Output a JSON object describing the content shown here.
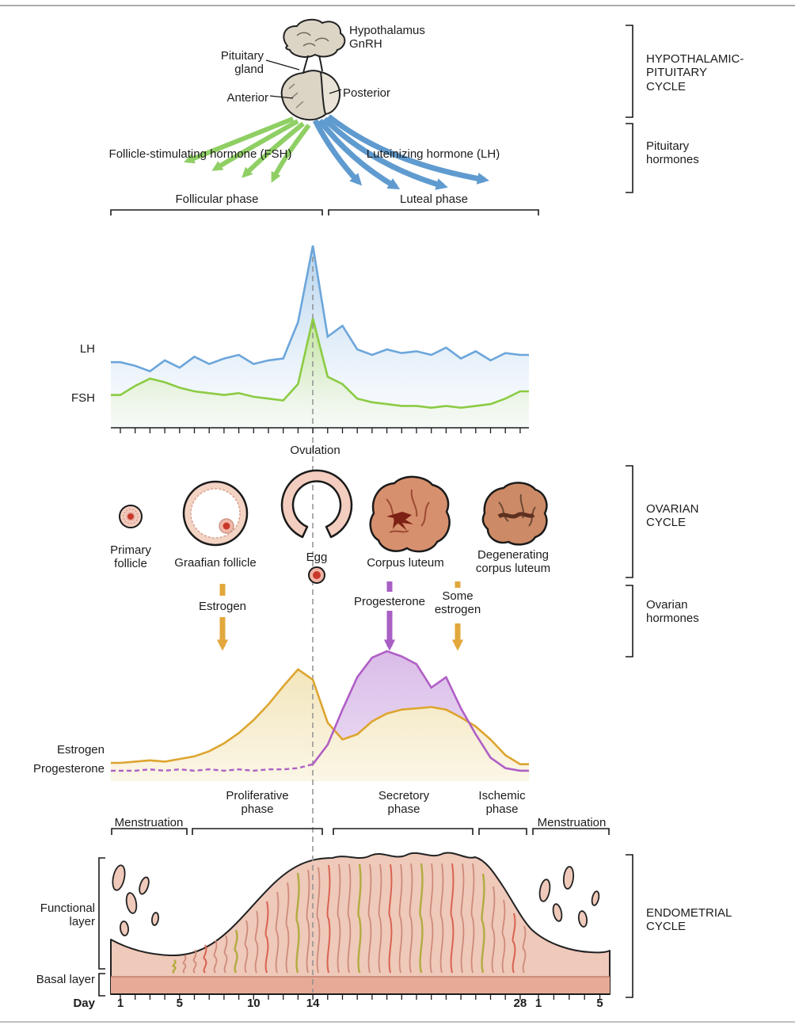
{
  "hypothalamic_pituitary": {
    "hypothalamus_gnrh": "Hypothalamus\nGnRH",
    "pituitary_gland": "Pituitary\ngland",
    "anterior": "Anterior",
    "posterior": "Posterior",
    "bracket_label": "HYPOTHALAMIC-\nPITUITARY\nCYCLE"
  },
  "pituitary_hormones": {
    "fsh_full": "Follicle-stimulating hormone (FSH)",
    "lh_full": "Luteinizing hormone (LH)",
    "bracket_label": "Pituitary\nhormones"
  },
  "cycle_phases": {
    "follicular": "Follicular phase",
    "luteal": "Luteal phase"
  },
  "gonadotropin_chart": {
    "lh": "LH",
    "fsh": "FSH"
  },
  "ovarian_cycle": {
    "ovulation": "Ovulation",
    "primary_follicle": "Primary\nfollicle",
    "graafian_follicle": "Graafian follicle",
    "egg": "Egg",
    "corpus_luteum": "Corpus luteum",
    "degenerating_corpus_luteum": "Degenerating\ncorpus luteum",
    "bracket_label": "OVARIAN\nCYCLE"
  },
  "ovarian_hormones": {
    "estrogen": "Estrogen",
    "progesterone": "Progesterone",
    "some_estrogen": "Some\nestrogen",
    "bracket_label": "Ovarian\nhormones"
  },
  "hormone_chart": {
    "estrogen": "Estrogen",
    "progesterone": "Progesterone"
  },
  "endometrial_phases": {
    "menstruation_left": "Menstruation",
    "proliferative": "Proliferative\nphase",
    "secretory": "Secretory\nphase",
    "ischemic": "Ischemic\nphase",
    "menstruation_right": "Menstruation"
  },
  "endometrial_cycle": {
    "functional_layer": "Functional\nlayer",
    "basal_layer": "Basal layer",
    "bracket_label": "ENDOMETRIAL\nCYCLE"
  },
  "day_axis": {
    "label": "Day",
    "ticks": [
      "1",
      "5",
      "10",
      "14",
      "28",
      "1",
      "5"
    ]
  },
  "colors": {
    "fsh_arrow": "#8fcf64",
    "lh_arrow": "#5f9bcf",
    "estrogen_arrow": "#e2a83c",
    "progesterone_arrow": "#a85fc4"
  },
  "chart_data": [
    {
      "type": "line",
      "x_label": "Day",
      "x_values": [
        1,
        2,
        3,
        4,
        5,
        6,
        7,
        8,
        9,
        10,
        11,
        12,
        13,
        14,
        15,
        16,
        17,
        18,
        19,
        20,
        21,
        22,
        23,
        24,
        25,
        26,
        27,
        28
      ],
      "x_range": [
        1,
        28
      ],
      "y_unit": "relative level (% of cycle maximum)",
      "surge_day": 14,
      "series": [
        {
          "name": "LH",
          "color": "#6ca6db",
          "values": [
            36,
            34,
            31,
            37,
            33,
            39,
            35,
            38,
            40,
            35,
            37,
            38,
            58,
            100,
            50,
            56,
            43,
            40,
            43,
            41,
            42,
            40,
            44,
            38,
            42,
            37,
            41,
            40
          ]
        },
        {
          "name": "FSH",
          "color": "#8ccb44",
          "values": [
            18,
            23,
            27,
            25,
            22,
            20,
            19,
            18,
            19,
            17,
            16,
            15,
            24,
            60,
            28,
            24,
            16,
            14,
            13,
            12,
            12,
            11,
            12,
            11,
            12,
            13,
            16,
            20
          ]
        }
      ]
    },
    {
      "type": "line",
      "x_label": "Day",
      "x_values": [
        1,
        2,
        3,
        4,
        5,
        6,
        7,
        8,
        9,
        10,
        11,
        12,
        13,
        14,
        15,
        16,
        17,
        18,
        19,
        20,
        21,
        22,
        23,
        24,
        25,
        26,
        27,
        28
      ],
      "x_range": [
        1,
        28
      ],
      "y_unit": "relative level (% of cycle maximum)",
      "series": [
        {
          "name": "Estrogen",
          "color": "#dda52f",
          "values": [
            14,
            15,
            16,
            15,
            17,
            19,
            23,
            29,
            37,
            47,
            59,
            73,
            86,
            78,
            45,
            32,
            36,
            46,
            52,
            55,
            56,
            57,
            55,
            49,
            42,
            32,
            20,
            13
          ]
        },
        {
          "name": "Progesterone",
          "color": "#b05fc6",
          "dashed_until_day": 14,
          "values": [
            8,
            8,
            9,
            8,
            9,
            8,
            9,
            8,
            9,
            8,
            9,
            9,
            10,
            13,
            28,
            55,
            80,
            95,
            100,
            96,
            90,
            72,
            80,
            56,
            36,
            18,
            10,
            8
          ]
        }
      ]
    }
  ]
}
